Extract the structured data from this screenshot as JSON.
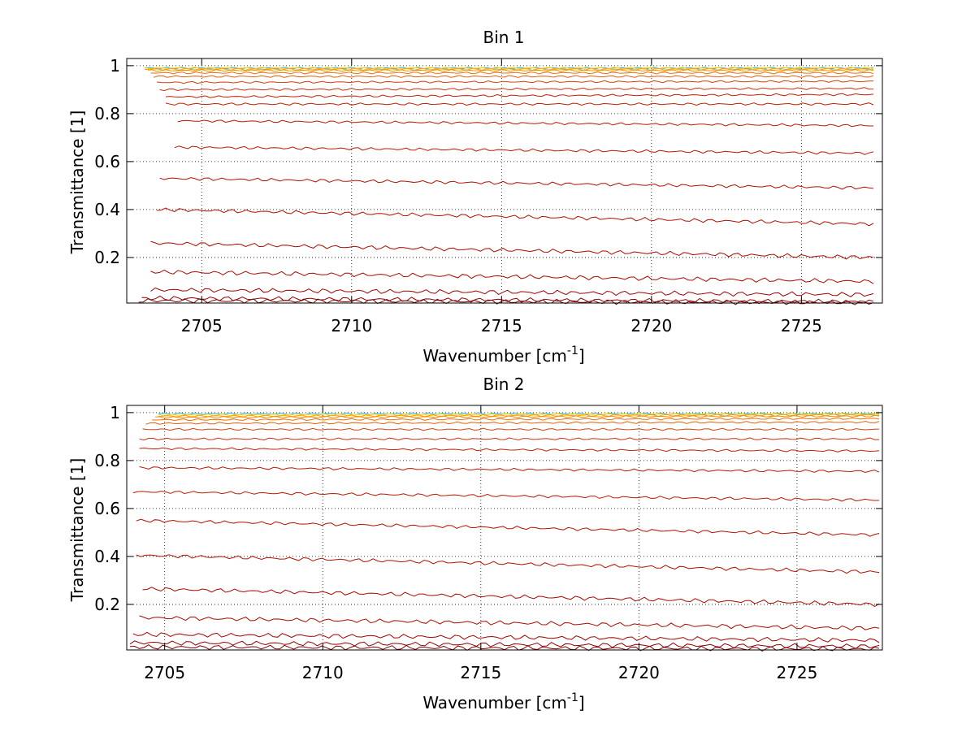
{
  "figure": {
    "background": "#ffffff"
  },
  "chart_data": [
    {
      "type": "line",
      "title": "Bin 1",
      "xlabel": "Wavenumber [cm",
      "xlabel_exponent": "-1",
      "xlabel_suffix": "]",
      "ylabel": "Transmittance [1]",
      "xlim": [
        2702.5,
        2727.7
      ],
      "ylim": [
        0.01,
        1.03
      ],
      "xticks": [
        2705,
        2710,
        2715,
        2720,
        2725
      ],
      "xtick_labels": [
        "2705",
        "2710",
        "2715",
        "2720",
        "2725"
      ],
      "yticks": [
        0.2,
        0.4,
        0.6,
        0.8,
        1
      ],
      "ytick_labels": [
        "0.2",
        "0.4",
        "0.6",
        "0.8",
        "1"
      ],
      "grid": true,
      "x_end": 2727.4,
      "series": [
        {
          "x_start": 2703.1,
          "y_start": 0.99,
          "y_end": 0.99,
          "color": "#2ab0c8"
        },
        {
          "x_start": 2703.1,
          "y_start": 0.99,
          "y_end": 0.99,
          "color": "#ffd000"
        },
        {
          "x_start": 2703.1,
          "y_start": 0.985,
          "y_end": 0.985,
          "color": "#ffa000"
        },
        {
          "x_start": 2703.2,
          "y_start": 0.98,
          "y_end": 0.98,
          "color": "#ff8a00"
        },
        {
          "x_start": 2703.3,
          "y_start": 0.97,
          "y_end": 0.97,
          "color": "#f07000"
        },
        {
          "x_start": 2703.4,
          "y_start": 0.955,
          "y_end": 0.955,
          "color": "#e06010"
        },
        {
          "x_start": 2703.5,
          "y_start": 0.93,
          "y_end": 0.935,
          "color": "#d04010"
        },
        {
          "x_start": 2703.6,
          "y_start": 0.9,
          "y_end": 0.905,
          "color": "#c83010"
        },
        {
          "x_start": 2703.8,
          "y_start": 0.87,
          "y_end": 0.88,
          "color": "#c02000"
        },
        {
          "x_start": 2703.8,
          "y_start": 0.84,
          "y_end": 0.84,
          "color": "#c02000"
        },
        {
          "x_start": 2704.2,
          "y_start": 0.77,
          "y_end": 0.75,
          "color": "#b81800"
        },
        {
          "x_start": 2704.1,
          "y_start": 0.66,
          "y_end": 0.635,
          "color": "#b81800"
        },
        {
          "x_start": 2703.6,
          "y_start": 0.53,
          "y_end": 0.49,
          "color": "#b01000"
        },
        {
          "x_start": 2703.5,
          "y_start": 0.4,
          "y_end": 0.34,
          "color": "#b01000"
        },
        {
          "x_start": 2703.3,
          "y_start": 0.26,
          "y_end": 0.2,
          "color": "#a80800"
        },
        {
          "x_start": 2703.3,
          "y_start": 0.14,
          "y_end": 0.1,
          "color": "#a80800"
        },
        {
          "x_start": 2703.3,
          "y_start": 0.065,
          "y_end": 0.045,
          "color": "#a00000"
        },
        {
          "x_start": 2703.0,
          "y_start": 0.03,
          "y_end": 0.015,
          "color": "#900000"
        },
        {
          "x_start": 2702.9,
          "y_start": 0.02,
          "y_end": 0.012,
          "color": "#800000"
        }
      ]
    },
    {
      "type": "line",
      "title": "Bin 2",
      "xlabel": "Wavenumber [cm",
      "xlabel_exponent": "-1",
      "xlabel_suffix": "]",
      "ylabel": "Transmittance [1]",
      "xlim": [
        2703.8,
        2727.7
      ],
      "ylim": [
        0.01,
        1.03
      ],
      "xticks": [
        2705,
        2710,
        2715,
        2720,
        2725
      ],
      "xtick_labels": [
        "2705",
        "2710",
        "2715",
        "2720",
        "2725"
      ],
      "yticks": [
        0.2,
        0.4,
        0.6,
        0.8,
        1
      ],
      "ytick_labels": [
        "0.2",
        "0.4",
        "0.6",
        "0.8",
        "1"
      ],
      "grid": true,
      "x_end": 2727.6,
      "series": [
        {
          "x_start": 2704.8,
          "y_start": 0.995,
          "y_end": 0.995,
          "color": "#2ab0c8"
        },
        {
          "x_start": 2704.8,
          "y_start": 0.99,
          "y_end": 0.995,
          "color": "#ffd000"
        },
        {
          "x_start": 2704.8,
          "y_start": 0.985,
          "y_end": 0.99,
          "color": "#ffa000"
        },
        {
          "x_start": 2704.7,
          "y_start": 0.98,
          "y_end": 0.985,
          "color": "#ff8a00"
        },
        {
          "x_start": 2704.6,
          "y_start": 0.97,
          "y_end": 0.975,
          "color": "#f07000"
        },
        {
          "x_start": 2704.4,
          "y_start": 0.955,
          "y_end": 0.96,
          "color": "#e06010"
        },
        {
          "x_start": 2704.3,
          "y_start": 0.93,
          "y_end": 0.93,
          "color": "#d04010"
        },
        {
          "x_start": 2704.2,
          "y_start": 0.89,
          "y_end": 0.89,
          "color": "#c83010"
        },
        {
          "x_start": 2704.2,
          "y_start": 0.85,
          "y_end": 0.84,
          "color": "#c02000"
        },
        {
          "x_start": 2704.2,
          "y_start": 0.77,
          "y_end": 0.755,
          "color": "#b81800"
        },
        {
          "x_start": 2704.0,
          "y_start": 0.67,
          "y_end": 0.635,
          "color": "#b81800"
        },
        {
          "x_start": 2704.1,
          "y_start": 0.55,
          "y_end": 0.49,
          "color": "#b01000"
        },
        {
          "x_start": 2704.1,
          "y_start": 0.405,
          "y_end": 0.335,
          "color": "#b01000"
        },
        {
          "x_start": 2704.3,
          "y_start": 0.265,
          "y_end": 0.2,
          "color": "#a80800"
        },
        {
          "x_start": 2704.2,
          "y_start": 0.145,
          "y_end": 0.1,
          "color": "#a80800"
        },
        {
          "x_start": 2704.0,
          "y_start": 0.075,
          "y_end": 0.05,
          "color": "#a00000"
        },
        {
          "x_start": 2703.9,
          "y_start": 0.04,
          "y_end": 0.025,
          "color": "#900000"
        },
        {
          "x_start": 2703.9,
          "y_start": 0.022,
          "y_end": 0.014,
          "color": "#800000"
        }
      ]
    }
  ]
}
